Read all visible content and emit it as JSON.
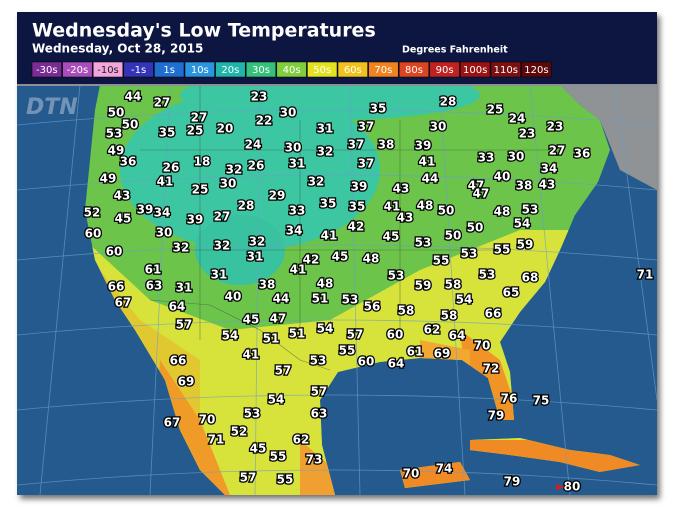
{
  "header": {
    "title": "Wednesday's Low Temperatures",
    "date": "Wednesday, Oct 28, 2015",
    "units": "Degrees Fahrenheit"
  },
  "logo": "DTN",
  "legend": [
    {
      "label": "-30s",
      "color": "#7a2c95"
    },
    {
      "label": "-20s",
      "color": "#a94dbb"
    },
    {
      "label": "-10s",
      "color": "#f2a6dc"
    },
    {
      "label": "-1s",
      "color": "#3434b8"
    },
    {
      "label": "1s",
      "color": "#1f6fd0"
    },
    {
      "label": "10s",
      "color": "#2a94de"
    },
    {
      "label": "20s",
      "color": "#1fb5aa"
    },
    {
      "label": "30s",
      "color": "#35c07c"
    },
    {
      "label": "40s",
      "color": "#7fcf3c"
    },
    {
      "label": "50s",
      "color": "#e2e21e"
    },
    {
      "label": "60s",
      "color": "#f2c21c"
    },
    {
      "label": "70s",
      "color": "#f08220"
    },
    {
      "label": "80s",
      "color": "#dd4420"
    },
    {
      "label": "90s",
      "color": "#c02222"
    },
    {
      "label": "100s",
      "color": "#9c1212"
    },
    {
      "label": "110s",
      "color": "#7c1010"
    },
    {
      "label": "120s",
      "color": "#5c0808"
    }
  ],
  "temperatures": [
    44,
    27,
    23,
    35,
    28,
    50,
    27,
    30,
    25,
    50,
    35,
    25,
    20,
    22,
    31,
    37,
    30,
    24,
    23,
    53,
    23,
    49,
    24,
    30,
    32,
    37,
    38,
    39,
    33,
    30,
    27,
    36,
    36,
    26,
    18,
    32,
    26,
    31,
    37,
    41,
    34,
    49,
    41,
    30,
    32,
    39,
    43,
    44,
    47,
    40,
    38,
    43,
    43,
    25,
    29,
    47,
    52,
    45,
    39,
    34,
    39,
    27,
    28,
    33,
    35,
    35,
    41,
    48,
    50,
    48,
    53,
    43,
    54,
    60,
    30,
    34,
    41,
    42,
    45,
    50,
    50,
    59,
    60,
    32,
    32,
    32,
    53,
    55,
    31,
    42,
    45,
    48,
    55,
    53,
    61,
    31,
    41,
    53,
    53,
    68,
    71,
    66,
    63,
    31,
    38,
    48,
    59,
    58,
    67,
    64,
    40,
    44,
    51,
    53,
    56,
    54,
    65,
    57,
    45,
    47,
    54,
    58,
    58,
    66,
    54,
    51,
    51,
    57,
    60,
    62,
    64,
    70,
    41,
    55,
    61,
    69,
    66,
    53,
    60,
    64,
    72,
    57,
    69,
    57,
    76,
    75,
    54,
    53,
    63,
    79,
    67,
    70,
    52,
    62,
    71,
    45,
    55,
    73,
    57,
    55,
    70,
    74,
    79,
    80
  ]
}
